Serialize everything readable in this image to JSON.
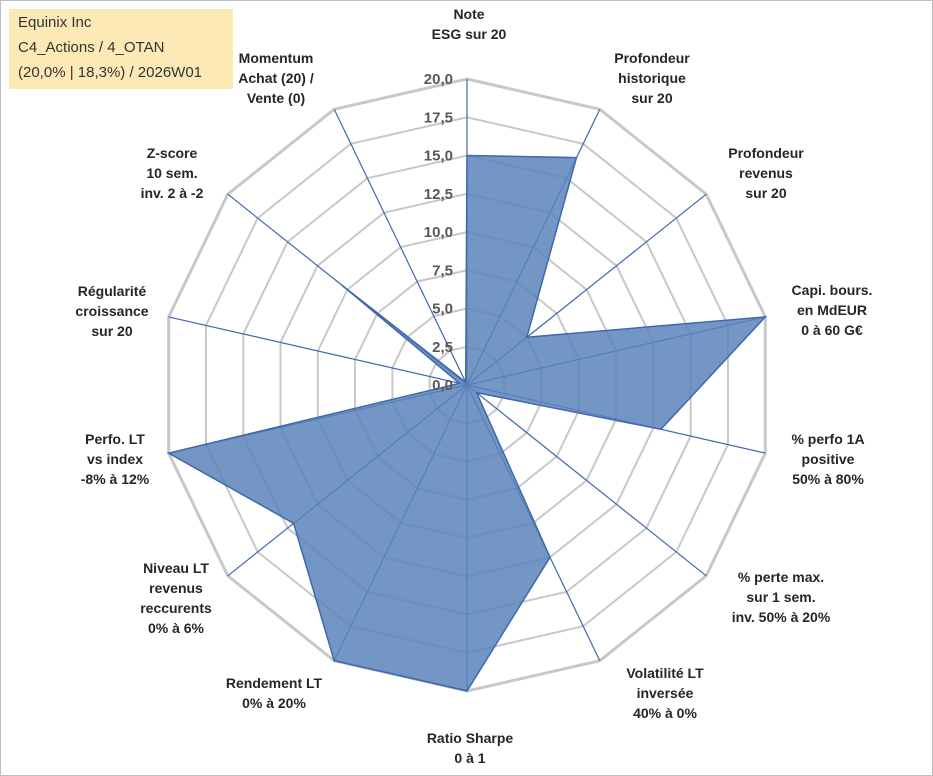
{
  "header": {
    "line1": "Equinix Inc",
    "line2": "C4_Actions / 4_OTAN",
    "line3": "(20,0% | 18,3%) / 2026W01"
  },
  "chart_data": {
    "type": "radar",
    "title": "",
    "rmax": 20,
    "ticks": [
      "0,0",
      "2,5",
      "5,0",
      "7,5",
      "10,0",
      "12,5",
      "15,0",
      "17,5",
      "20,0"
    ],
    "grid": true,
    "colors": {
      "fill": "#5a84bb",
      "stroke": "#3f68ad",
      "grid": "#c8c8c8",
      "spoke": "#3f68ad"
    },
    "axes": [
      {
        "label": [
          "Note",
          "ESG sur 20"
        ],
        "value": 15.0
      },
      {
        "label": [
          "Profondeur",
          "historique",
          "sur 20"
        ],
        "value": 16.5
      },
      {
        "label": [
          "Profondeur",
          "revenus",
          "sur 20"
        ],
        "value": 5.0
      },
      {
        "label": [
          "Capi. bours.",
          "en MdEUR",
          "0 à 60 G€"
        ],
        "value": 20.0
      },
      {
        "label": [
          "% perfo 1A",
          "positive",
          "50% à 80%"
        ],
        "value": 13.0
      },
      {
        "label": [
          "% perte max.",
          "sur 1 sem.",
          "inv. 50% à 20%"
        ],
        "value": 0.8
      },
      {
        "label": [
          "Volatilité LT",
          "inversée",
          "40% à 0%"
        ],
        "value": 12.5
      },
      {
        "label": [
          "Ratio Sharpe",
          "0 à 1"
        ],
        "value": 20.0
      },
      {
        "label": [
          "Rendement LT",
          "0% à 20%"
        ],
        "value": 20.0
      },
      {
        "label": [
          "Niveau LT",
          "revenus",
          "reccurents",
          "0% à 6%"
        ],
        "value": 14.5
      },
      {
        "label": [
          "Perfo. LT",
          "vs index",
          "-8% à 12%"
        ],
        "value": 20.0
      },
      {
        "label": [
          "Régularité",
          "croissance",
          "sur 20"
        ],
        "value": 0.5
      },
      {
        "label": [
          "Z-score",
          "10 sem.",
          "inv. 2 à -2"
        ],
        "value": 10.5
      },
      {
        "label": [
          "Momentum",
          "Achat (20) /",
          "Vente (0)"
        ],
        "value": 0.2
      }
    ]
  }
}
